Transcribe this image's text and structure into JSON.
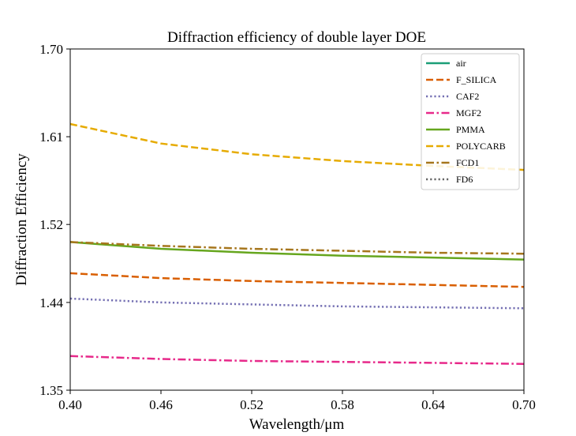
{
  "chart_data": {
    "type": "line",
    "title": "Diffraction efficiency of double layer DOE",
    "xlabel": "Wavelength/μm",
    "ylabel": "Diffraction Efficiency",
    "xlim": [
      0.4,
      0.7
    ],
    "ylim": [
      1.35,
      1.7
    ],
    "xticks": [
      "0.40",
      "0.46",
      "0.52",
      "0.58",
      "0.64",
      "0.70"
    ],
    "yticks": [
      "1.35",
      "1.44",
      "1.52",
      "1.61",
      "1.70"
    ],
    "ytick_values": [
      1.35,
      1.44,
      1.52,
      1.61,
      1.7
    ],
    "grid": false,
    "legend_position": "top-right",
    "x": [
      0.4,
      0.46,
      0.52,
      0.58,
      0.64,
      0.7
    ],
    "series": [
      {
        "name": "air",
        "color": "#1b9e77",
        "dash": "solid",
        "values": null
      },
      {
        "name": "F_SILICA",
        "color": "#d95f02",
        "dash": "dashed",
        "values": [
          1.47,
          1.465,
          1.462,
          1.46,
          1.458,
          1.456
        ]
      },
      {
        "name": "CAF2",
        "color": "#7570b3",
        "dash": "dotted",
        "values": [
          1.444,
          1.44,
          1.438,
          1.436,
          1.435,
          1.434
        ]
      },
      {
        "name": "MGF2",
        "color": "#e7298a",
        "dash": "dashdot",
        "values": [
          1.385,
          1.382,
          1.38,
          1.379,
          1.378,
          1.377
        ]
      },
      {
        "name": "PMMA",
        "color": "#66a61e",
        "dash": "solid",
        "values": [
          1.502,
          1.495,
          1.491,
          1.488,
          1.486,
          1.484
        ]
      },
      {
        "name": "POLYCARB",
        "color": "#e6ab02",
        "dash": "dashed",
        "values": [
          1.623,
          1.603,
          1.592,
          1.585,
          1.58,
          1.576
        ]
      },
      {
        "name": "FCD1",
        "color": "#a6761d",
        "dash": "dashdot",
        "values": [
          1.502,
          1.498,
          1.495,
          1.493,
          1.491,
          1.49
        ]
      },
      {
        "name": "FD6",
        "color": "#666666",
        "dash": "dotted",
        "values": null
      }
    ]
  }
}
